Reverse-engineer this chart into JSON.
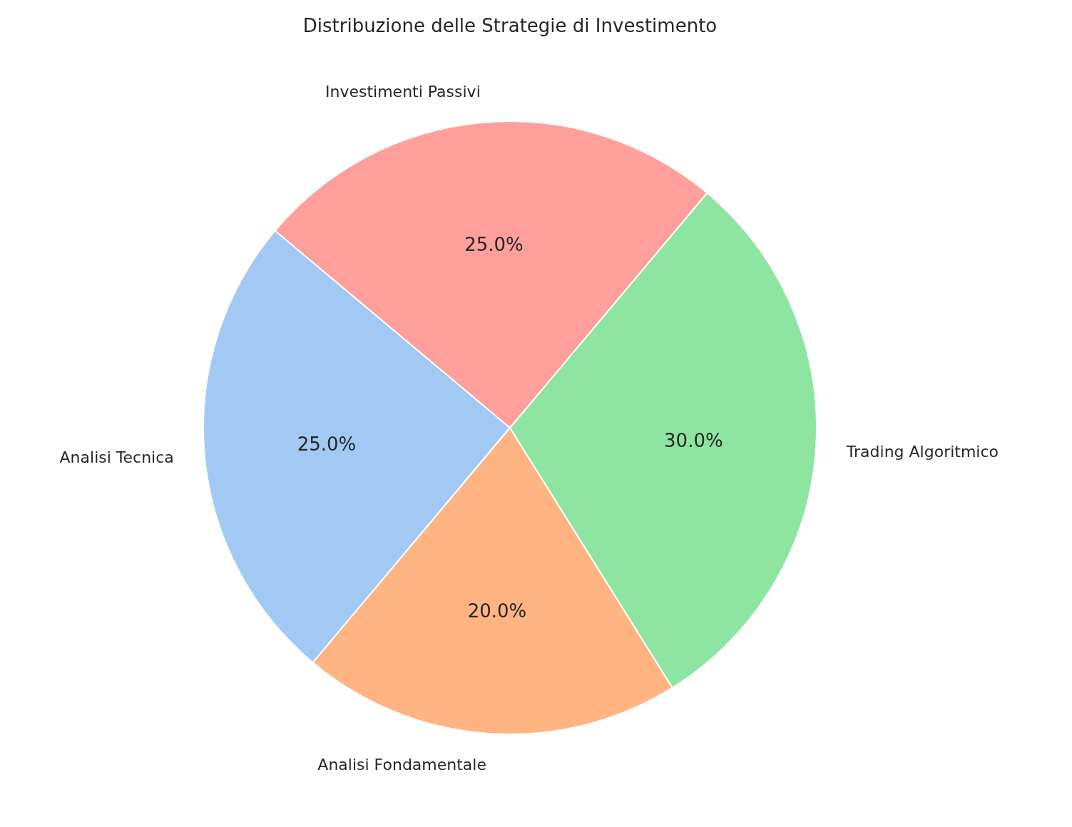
{
  "chart_data": {
    "type": "pie",
    "title": "Distribuzione delle Strategie di Investimento",
    "categories": [
      "Analisi Tecnica",
      "Analisi Fondamentale",
      "Trading Algoritmico",
      "Investimenti Passivi"
    ],
    "values": [
      25,
      20,
      30,
      25
    ],
    "colors": [
      "#a1c9f4",
      "#ffb482",
      "#8de5a1",
      "#ff9f9b"
    ],
    "value_labels": [
      "25.0%",
      "20.0%",
      "30.0%",
      "25.0%"
    ]
  }
}
